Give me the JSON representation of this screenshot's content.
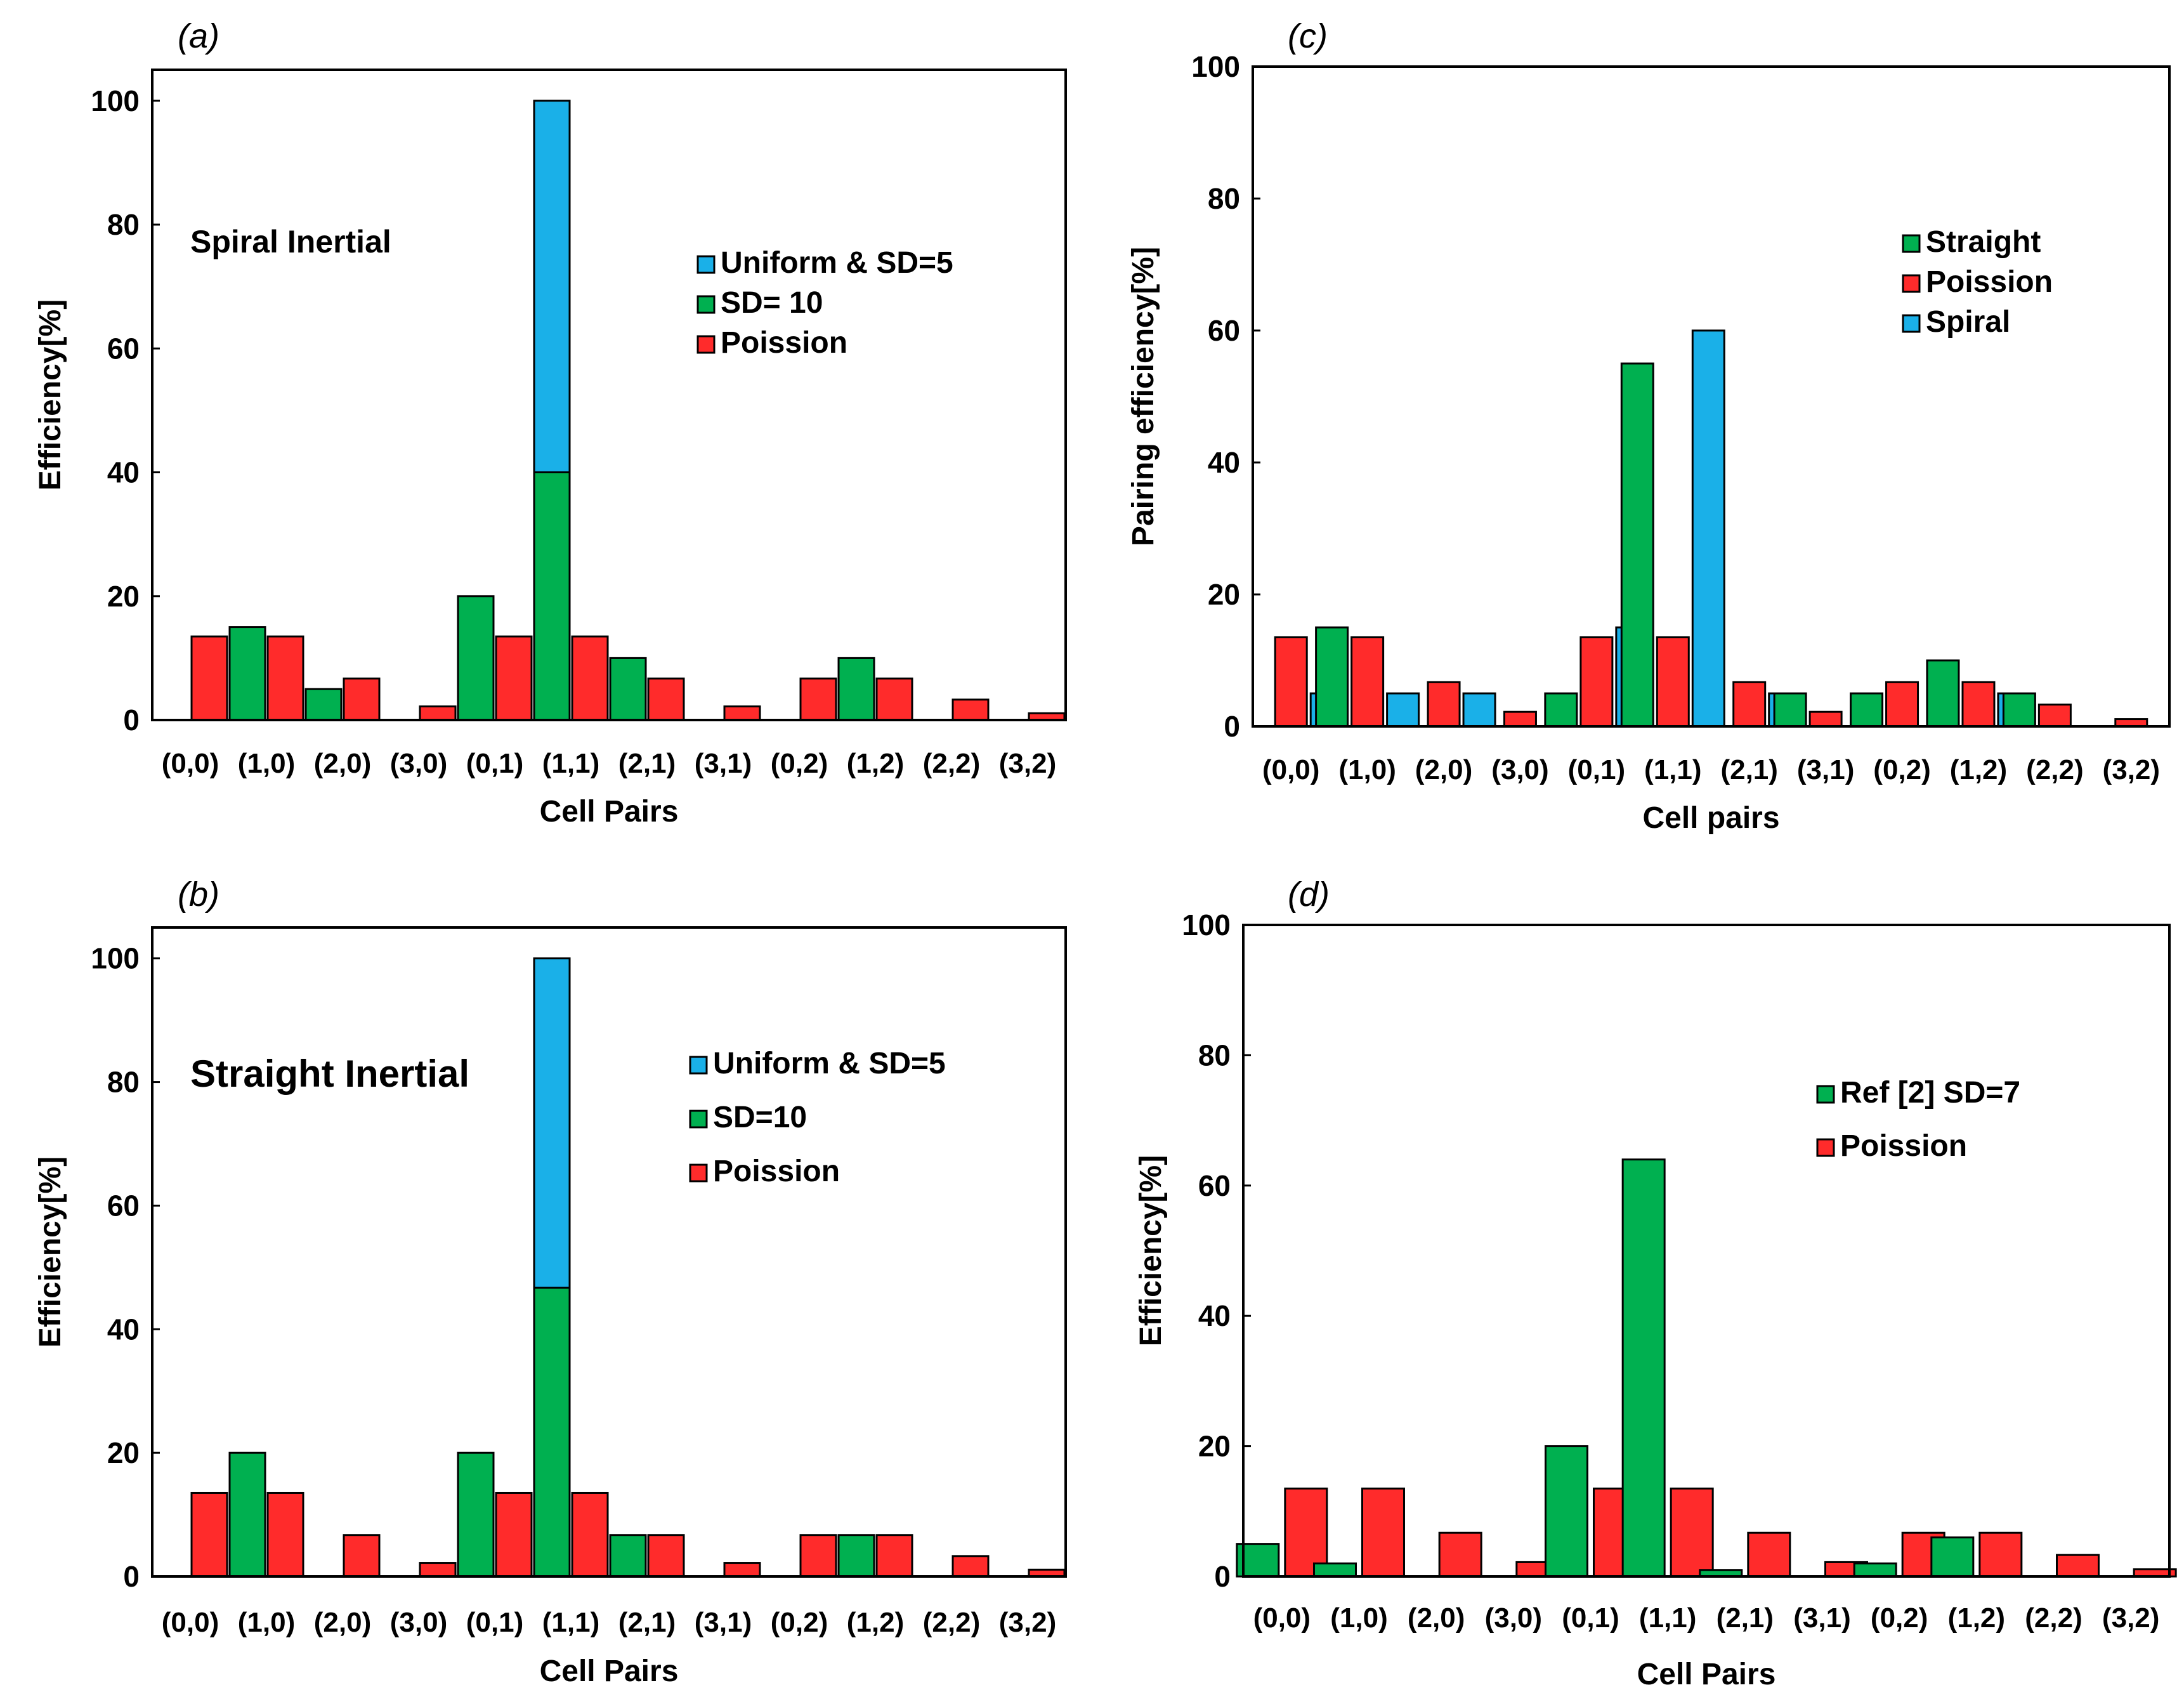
{
  "chart_data": [
    {
      "type": "bar",
      "panel": "(a)",
      "xlabel": "Cell Pairs",
      "ylabel": "Efficiency[%]",
      "ylim": [
        0,
        105
      ],
      "yticks": [
        0,
        20,
        40,
        60,
        80,
        100
      ],
      "annotation": "Spiral Inertial",
      "categories": [
        "(0,0)",
        "(1,0)",
        "(2,0)",
        "(3,0)",
        "(0,1)",
        "(1,1)",
        "(2,1)",
        "(3,1)",
        "(0,2)",
        "(1,2)",
        "(2,2)",
        "(3,2)"
      ],
      "series": [
        {
          "name": "Uniform & SD=5",
          "color": "#1ab0e8",
          "values": [
            0,
            0,
            0,
            0,
            0,
            100,
            0,
            0,
            0,
            0,
            0,
            0
          ]
        },
        {
          "name": "SD= 10",
          "color": "#00b050",
          "values": [
            0,
            15,
            5,
            0,
            20,
            40,
            10,
            0,
            0,
            10,
            0,
            0
          ]
        },
        {
          "name": "Poission",
          "color": "#ff2b2b",
          "values": [
            13.5,
            13.5,
            6.7,
            2.2,
            13.5,
            13.5,
            6.7,
            2.2,
            6.7,
            6.7,
            3.3,
            1.1
          ]
        }
      ]
    },
    {
      "type": "bar",
      "panel": "(b)",
      "xlabel": "Cell Pairs",
      "ylabel": "Efficiency[%]",
      "ylim": [
        0,
        105
      ],
      "yticks": [
        0,
        20,
        40,
        60,
        80,
        100
      ],
      "annotation": "Straight Inertial",
      "categories": [
        "(0,0)",
        "(1,0)",
        "(2,0)",
        "(3,0)",
        "(0,1)",
        "(1,1)",
        "(2,1)",
        "(3,1)",
        "(0,2)",
        "(1,2)",
        "(2,2)",
        "(3,2)"
      ],
      "series": [
        {
          "name": "Uniform & SD=5",
          "color": "#1ab0e8",
          "values": [
            0,
            0,
            0,
            0,
            0,
            100,
            0,
            0,
            0,
            0,
            0,
            0
          ]
        },
        {
          "name": "SD=10",
          "color": "#00b050",
          "values": [
            0,
            20,
            0,
            0,
            20,
            46.7,
            6.7,
            0,
            0,
            6.7,
            0,
            0
          ]
        },
        {
          "name": "Poission",
          "color": "#ff2b2b",
          "values": [
            13.5,
            13.5,
            6.7,
            2.2,
            13.5,
            13.5,
            6.7,
            2.2,
            6.7,
            6.7,
            3.3,
            1.1
          ]
        }
      ]
    },
    {
      "type": "bar",
      "panel": "(c)",
      "xlabel": "Cell pairs",
      "ylabel": "Pairing efficiency[%]",
      "ylim": [
        0,
        100
      ],
      "yticks": [
        0,
        20,
        40,
        60,
        80,
        100
      ],
      "annotation": "",
      "categories": [
        "(0,0)",
        "(1,0)",
        "(2,0)",
        "(3,0)",
        "(0,1)",
        "(1,1)",
        "(2,1)",
        "(3,1)",
        "(0,2)",
        "(1,2)",
        "(2,2)",
        "(3,2)"
      ],
      "series": [
        {
          "name": "Straight",
          "color": "#00b050",
          "values": [
            0,
            15,
            0,
            0,
            5,
            55,
            0,
            5,
            5,
            10,
            5,
            0
          ]
        },
        {
          "name": "Poission",
          "color": "#ff2b2b",
          "values": [
            13.5,
            13.5,
            6.7,
            2.2,
            13.5,
            13.5,
            6.7,
            2.2,
            6.7,
            6.7,
            3.3,
            1.1
          ]
        },
        {
          "name": "Spiral",
          "color": "#1ab0e8",
          "values": [
            5,
            5,
            5,
            0,
            15,
            60,
            5,
            0,
            0,
            5,
            0,
            0
          ]
        }
      ]
    },
    {
      "type": "bar",
      "panel": "(d)",
      "xlabel": "Cell Pairs",
      "ylabel": "Efficiency[%]",
      "ylim": [
        0,
        100
      ],
      "yticks": [
        0,
        20,
        40,
        60,
        80,
        100
      ],
      "annotation": "",
      "categories": [
        "(0,0)",
        "(1,0)",
        "(2,0)",
        "(3,0)",
        "(0,1)",
        "(1,1)",
        "(2,1)",
        "(3,1)",
        "(0,2)",
        "(1,2)",
        "(2,2)",
        "(3,2)"
      ],
      "series": [
        {
          "name": "Ref [2] SD=7",
          "color": "#00b050",
          "values": [
            5,
            2,
            0,
            0,
            20,
            64,
            1,
            0,
            2,
            6,
            0,
            0
          ]
        },
        {
          "name": "Poission",
          "color": "#ff2b2b",
          "values": [
            13.5,
            13.5,
            6.7,
            2.2,
            13.5,
            13.5,
            6.7,
            2.2,
            6.7,
            6.7,
            3.3,
            1.1
          ]
        }
      ]
    }
  ]
}
